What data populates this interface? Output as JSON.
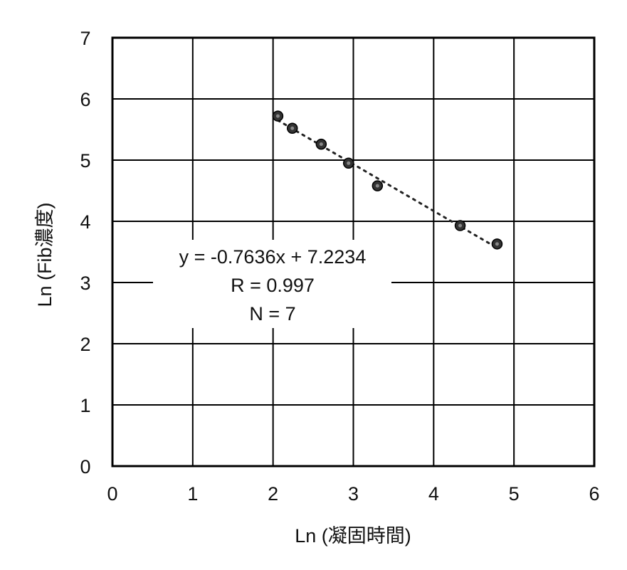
{
  "chart_data": {
    "type": "scatter",
    "title": "",
    "xlabel": "Ln (凝固時間)",
    "ylabel": "Ln (Fib濃度)",
    "xlim": [
      0,
      6
    ],
    "ylim": [
      0,
      7
    ],
    "xticks": [
      0,
      1,
      2,
      3,
      4,
      5,
      6
    ],
    "yticks": [
      0,
      1,
      2,
      3,
      4,
      5,
      6,
      7
    ],
    "grid": true,
    "legend": null,
    "series": [
      {
        "name": "data",
        "marker": "circle",
        "color": "#333333",
        "x": [
          2.06,
          2.24,
          2.6,
          2.94,
          3.3,
          4.33,
          4.79
        ],
        "y": [
          5.72,
          5.52,
          5.26,
          4.95,
          4.58,
          3.93,
          3.63
        ]
      }
    ],
    "trendline": {
      "type": "linear",
      "style": "dotted",
      "slope": -0.7636,
      "intercept": 7.2234,
      "x_range": [
        2.06,
        4.79
      ]
    },
    "annotations": [
      "y = -0.7636x + 7.2234",
      "R = 0.997",
      "N = 7"
    ]
  },
  "labels": {
    "equation": "y = -0.7636x + 7.2234",
    "r_value": "R = 0.997",
    "n_value": "N = 7"
  }
}
